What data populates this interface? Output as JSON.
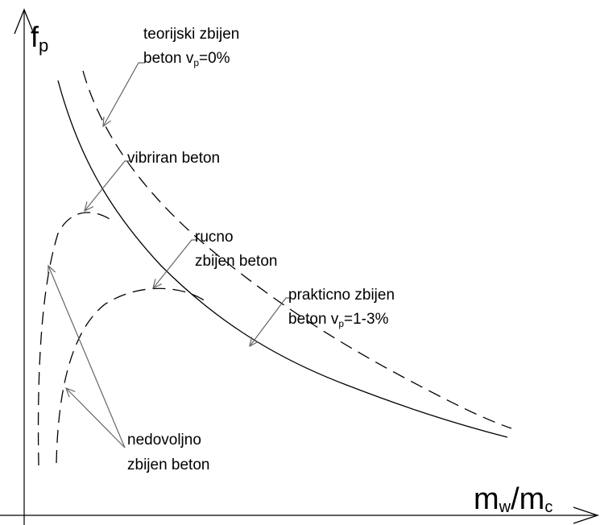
{
  "axes": {
    "y_label": {
      "main": "f",
      "sub": "p"
    },
    "x_label": {
      "main": "m",
      "sub": "w",
      "slash": "/m",
      "sub2": "c"
    }
  },
  "labels": {
    "theoretical": {
      "line1": "teorijski zbijen",
      "line2": "beton v",
      "sub": "p",
      "rest": "=0%"
    },
    "vibrated": {
      "line1": "vibriran beton"
    },
    "hand": {
      "line1": "rucno",
      "line2": "zbijen beton"
    },
    "practical": {
      "line1": "prakticno zbijen",
      "line2": "beton v",
      "sub": "p",
      "rest": "=1-3%"
    },
    "insufficient": {
      "line1": "nedovoljno",
      "line2": "zbijen beton"
    }
  }
}
